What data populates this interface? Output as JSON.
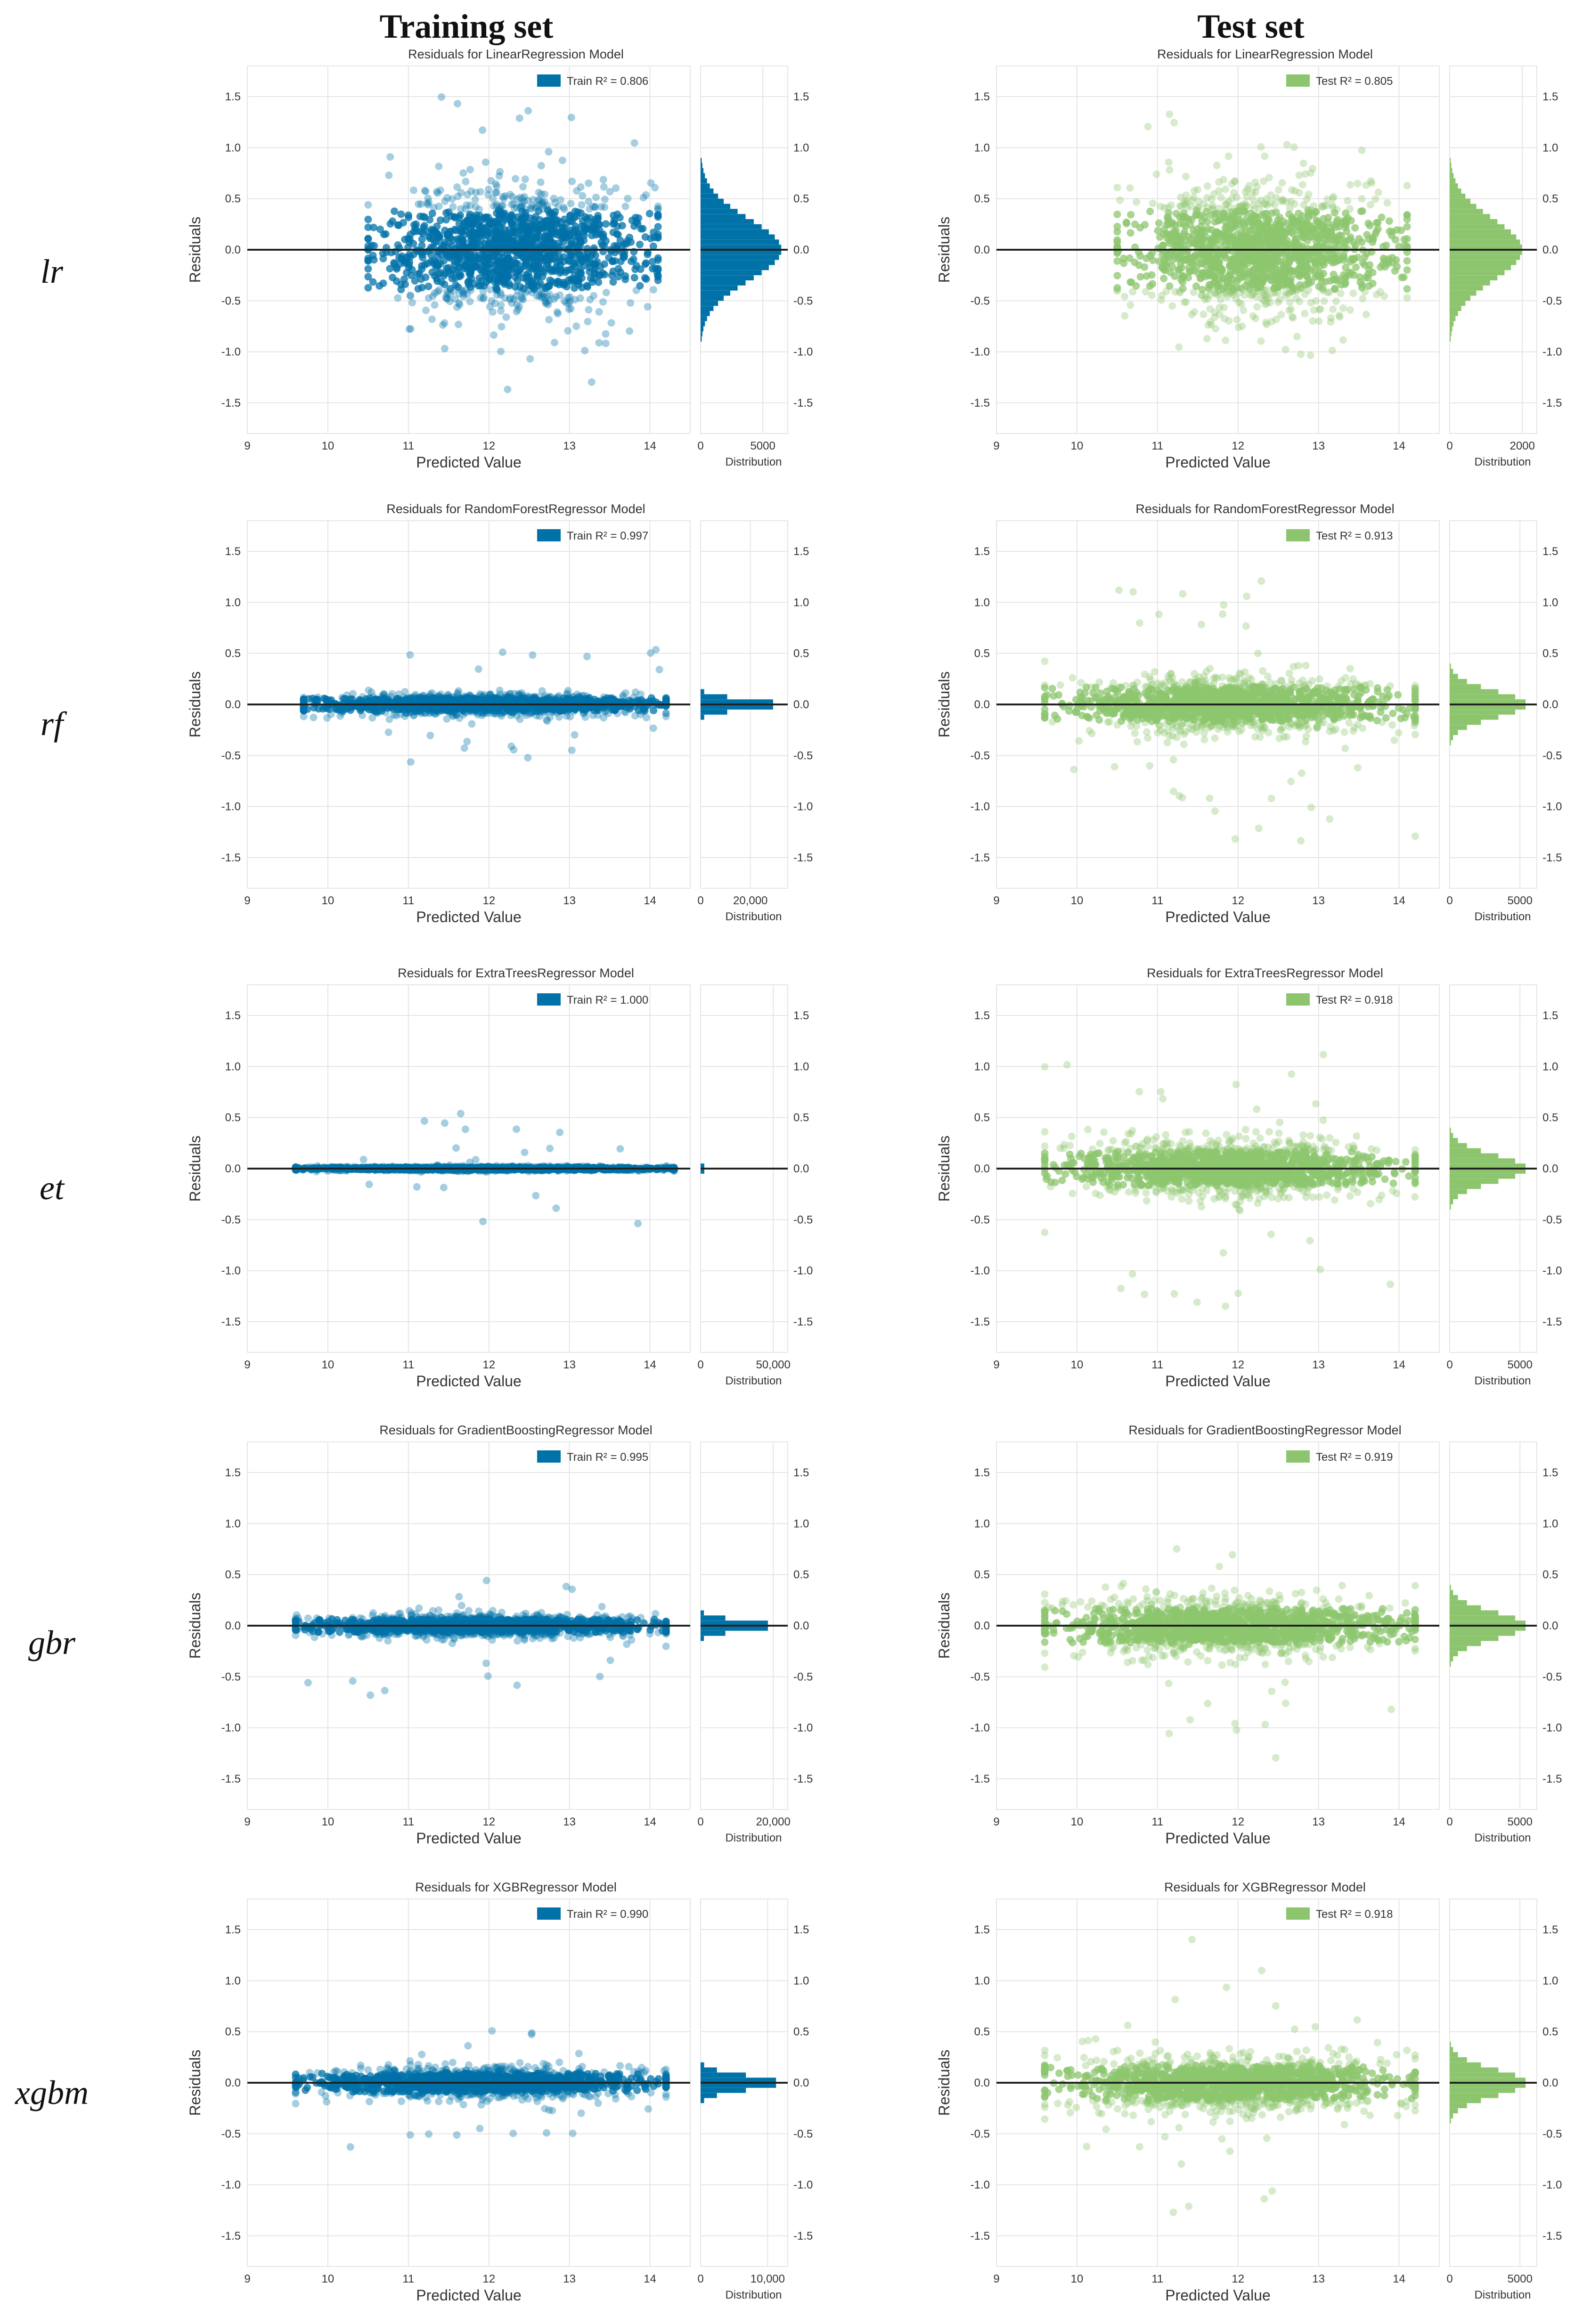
{
  "columns": [
    {
      "title": "Training set"
    },
    {
      "title": "Test set"
    }
  ],
  "colors": {
    "train": "#0072a8",
    "test": "#8cc56e",
    "grid": "#e5e5e5",
    "text": "#333333"
  },
  "common": {
    "ylabel": "Residuals",
    "xlabel": "Predicted Value",
    "hist_xlabel": "Distribution",
    "xlim": [
      9,
      14.5
    ],
    "ylim": [
      -1.8,
      1.8
    ],
    "x_ticks": [
      9,
      10,
      11,
      12,
      13,
      14
    ],
    "y_ticks": [
      -1.5,
      -1.0,
      -0.5,
      0.0,
      0.5,
      1.0,
      1.5
    ],
    "y_tick_labels": [
      "-1.5",
      "-1.0",
      "-0.5",
      "0.0",
      "0.5",
      "1.0",
      "1.5"
    ]
  },
  "rows": [
    {
      "label": "lr",
      "model": "LinearRegression"
    },
    {
      "label": "rf",
      "model": "RandomForestRegressor"
    },
    {
      "label": "et",
      "model": "ExtraTreesRegressor"
    },
    {
      "label": "gbr",
      "model": "GradientBoostingRegressor"
    },
    {
      "label": "xgbm",
      "model": "XGBRegressor"
    }
  ],
  "chart_data": [
    {
      "type": "scatter",
      "row": "lr",
      "set": "train",
      "title": "Residuals for LinearRegression Model",
      "legend": "Train R² = 0.806",
      "r2": 0.806,
      "color": "#0072a8",
      "x_range": [
        10.5,
        14.1
      ],
      "residual_range": [
        -1.6,
        1.5
      ],
      "residual_spread_sd": 0.3,
      "hist_xlim": [
        0,
        7000
      ],
      "hist_ticks": [
        0,
        5000
      ],
      "hist_tick_labels": [
        "0",
        "5000"
      ],
      "hist_peak": 6500
    },
    {
      "type": "scatter",
      "row": "lr",
      "set": "test",
      "title": "Residuals for LinearRegression Model",
      "legend": "Test R² = 0.805",
      "r2": 0.805,
      "color": "#8cc56e",
      "x_range": [
        10.5,
        14.1
      ],
      "residual_range": [
        -1.25,
        1.4
      ],
      "residual_spread_sd": 0.3,
      "hist_xlim": [
        0,
        2400
      ],
      "hist_ticks": [
        0,
        2000
      ],
      "hist_tick_labels": [
        "0",
        "2000"
      ],
      "hist_peak": 2000
    },
    {
      "type": "scatter",
      "row": "rf",
      "set": "train",
      "title": "Residuals for RandomForestRegressor Model",
      "legend": "Train R² = 0.997",
      "r2": 0.997,
      "color": "#0072a8",
      "x_range": [
        9.7,
        14.2
      ],
      "residual_range": [
        -0.6,
        0.55
      ],
      "residual_spread_sd": 0.05,
      "hist_xlim": [
        0,
        35000
      ],
      "hist_ticks": [
        0,
        20000
      ],
      "hist_tick_labels": [
        "0",
        "20,000"
      ],
      "hist_peak": 33000
    },
    {
      "type": "scatter",
      "row": "rf",
      "set": "test",
      "title": "Residuals for RandomForestRegressor Model",
      "legend": "Test R² = 0.913",
      "r2": 0.913,
      "color": "#8cc56e",
      "x_range": [
        9.6,
        14.2
      ],
      "residual_range": [
        -1.35,
        1.25
      ],
      "residual_spread_sd": 0.13,
      "hist_xlim": [
        0,
        6200
      ],
      "hist_ticks": [
        0,
        5000
      ],
      "hist_tick_labels": [
        "0",
        "5000"
      ],
      "hist_peak": 5500
    },
    {
      "type": "scatter",
      "row": "et",
      "set": "train",
      "title": "Residuals for ExtraTreesRegressor Model",
      "legend": "Train R² = 1.000",
      "r2": 1.0,
      "color": "#0072a8",
      "x_range": [
        9.6,
        14.3
      ],
      "residual_range": [
        -0.55,
        0.55
      ],
      "residual_spread_sd": 0.01,
      "hist_xlim": [
        0,
        60000
      ],
      "hist_ticks": [
        0,
        50000
      ],
      "hist_tick_labels": [
        "0",
        "50,000"
      ],
      "hist_peak": 58000
    },
    {
      "type": "scatter",
      "row": "et",
      "set": "test",
      "title": "Residuals for ExtraTreesRegressor Model",
      "legend": "Test R² = 0.918",
      "r2": 0.918,
      "color": "#8cc56e",
      "x_range": [
        9.6,
        14.2
      ],
      "residual_range": [
        -1.4,
        1.3
      ],
      "residual_spread_sd": 0.13,
      "hist_xlim": [
        0,
        6200
      ],
      "hist_ticks": [
        0,
        5000
      ],
      "hist_tick_labels": [
        "0",
        "5000"
      ],
      "hist_peak": 5500
    },
    {
      "type": "scatter",
      "row": "gbr",
      "set": "train",
      "title": "Residuals for GradientBoostingRegressor Model",
      "legend": "Train R² = 0.995",
      "r2": 0.995,
      "color": "#0072a8",
      "x_range": [
        9.6,
        14.2
      ],
      "residual_range": [
        -0.7,
        0.5
      ],
      "residual_spread_sd": 0.05,
      "hist_xlim": [
        0,
        24000
      ],
      "hist_ticks": [
        0,
        20000
      ],
      "hist_tick_labels": [
        "0",
        "20,000"
      ],
      "hist_peak": 21000
    },
    {
      "type": "scatter",
      "row": "gbr",
      "set": "test",
      "title": "Residuals for GradientBoostingRegressor Model",
      "legend": "Test R² = 0.919",
      "r2": 0.919,
      "color": "#8cc56e",
      "x_range": [
        9.6,
        14.2
      ],
      "residual_range": [
        -1.3,
        1.25
      ],
      "residual_spread_sd": 0.13,
      "hist_xlim": [
        0,
        6200
      ],
      "hist_ticks": [
        0,
        5000
      ],
      "hist_tick_labels": [
        "0",
        "5000"
      ],
      "hist_peak": 5500
    },
    {
      "type": "scatter",
      "row": "xgbm",
      "set": "train",
      "title": "Residuals for XGBRegressor Model",
      "legend": "Train R² = 0.990",
      "r2": 0.99,
      "color": "#0072a8",
      "x_range": [
        9.6,
        14.2
      ],
      "residual_range": [
        -0.65,
        0.6
      ],
      "residual_spread_sd": 0.07,
      "hist_xlim": [
        0,
        13000
      ],
      "hist_ticks": [
        0,
        10000
      ],
      "hist_tick_labels": [
        "0",
        "10,000"
      ],
      "hist_peak": 12000
    },
    {
      "type": "scatter",
      "row": "xgbm",
      "set": "test",
      "title": "Residuals for XGBRegressor Model",
      "legend": "Test R² = 0.918",
      "r2": 0.918,
      "color": "#8cc56e",
      "x_range": [
        9.6,
        14.2
      ],
      "residual_range": [
        -1.3,
        1.45
      ],
      "residual_spread_sd": 0.13,
      "hist_xlim": [
        0,
        6200
      ],
      "hist_ticks": [
        0,
        5000
      ],
      "hist_tick_labels": [
        "0",
        "5000"
      ],
      "hist_peak": 5500
    }
  ]
}
